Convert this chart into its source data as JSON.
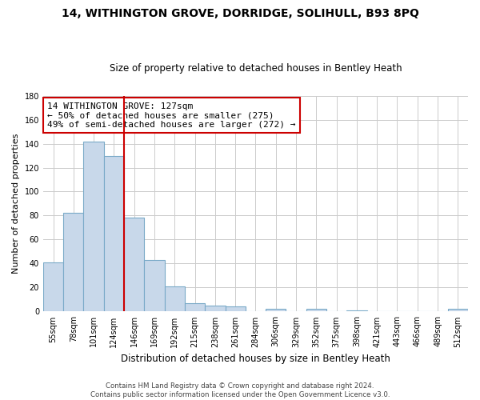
{
  "title": "14, WITHINGTON GROVE, DORRIDGE, SOLIHULL, B93 8PQ",
  "subtitle": "Size of property relative to detached houses in Bentley Heath",
  "xlabel": "Distribution of detached houses by size in Bentley Heath",
  "ylabel": "Number of detached properties",
  "bar_labels": [
    "55sqm",
    "78sqm",
    "101sqm",
    "124sqm",
    "146sqm",
    "169sqm",
    "192sqm",
    "215sqm",
    "238sqm",
    "261sqm",
    "284sqm",
    "306sqm",
    "329sqm",
    "352sqm",
    "375sqm",
    "398sqm",
    "421sqm",
    "443sqm",
    "466sqm",
    "489sqm",
    "512sqm"
  ],
  "bar_values": [
    41,
    82,
    142,
    130,
    78,
    43,
    21,
    7,
    5,
    4,
    0,
    2,
    0,
    2,
    0,
    1,
    0,
    0,
    0,
    0,
    2
  ],
  "bar_color": "#c8d8ea",
  "bar_edge_color": "#7aaac8",
  "vline_x_idx": 3.5,
  "vline_color": "#cc0000",
  "annotation_line1": "14 WITHINGTON GROVE: 127sqm",
  "annotation_line2": "← 50% of detached houses are smaller (275)",
  "annotation_line3": "49% of semi-detached houses are larger (272) →",
  "annotation_box_color": "#ffffff",
  "annotation_box_edge": "#cc0000",
  "ylim": [
    0,
    180
  ],
  "yticks": [
    0,
    20,
    40,
    60,
    80,
    100,
    120,
    140,
    160,
    180
  ],
  "footer": "Contains HM Land Registry data © Crown copyright and database right 2024.\nContains public sector information licensed under the Open Government Licence v3.0.",
  "bg_color": "#ffffff",
  "grid_color": "#cccccc"
}
